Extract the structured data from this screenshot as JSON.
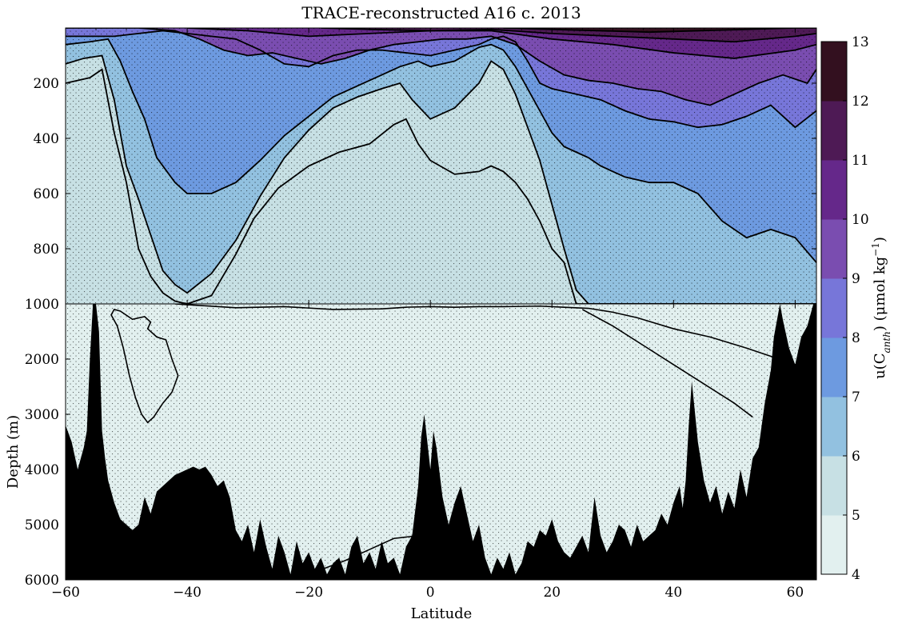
{
  "chart_data": {
    "type": "heatmap",
    "title": "TRACE-reconstructed A16 c. 2013",
    "xlabel": "Latitude",
    "ylabel": "Depth (m)",
    "colorbar_label": "u(C",
    "colorbar_label_sub": "anth",
    "colorbar_label_rest": ") (μmol kg",
    "colorbar_label_sup": "−1",
    "colorbar_label_end": ")",
    "xlim": [
      -60,
      63.5
    ],
    "x_ticks": [
      -60,
      -40,
      -20,
      0,
      20,
      40,
      60
    ],
    "x_tick_labels": [
      "−60",
      "−40",
      "−20",
      "0",
      "20",
      "40",
      "60"
    ],
    "upper_panel": {
      "ylim": [
        0,
        1000
      ],
      "y_ticks": [
        200,
        400,
        600,
        800,
        1000
      ],
      "y_tick_labels": [
        "200",
        "400",
        "600",
        "800",
        "1000"
      ]
    },
    "lower_panel": {
      "ylim": [
        1000,
        6000
      ],
      "y_ticks": [
        1000,
        2000,
        3000,
        4000,
        5000,
        6000
      ],
      "y_tick_labels": [
        "1000",
        "2000",
        "3000",
        "4000",
        "5000",
        "6000"
      ]
    },
    "colorbar": {
      "levels": [
        4,
        5,
        6,
        7,
        8,
        9,
        10,
        11,
        12,
        13
      ],
      "level_labels": [
        "4",
        "5",
        "6",
        "7",
        "8",
        "9",
        "10",
        "11",
        "12",
        "13"
      ],
      "colors": [
        "#e2f0ef",
        "#c7e0e4",
        "#92c1e0",
        "#6d9ae0",
        "#7776d9",
        "#7a4db0",
        "#65288a",
        "#4e1a55",
        "#33101f"
      ]
    },
    "contours_upper": [
      {
        "level": 5,
        "x": [
          -60,
          -56,
          -54,
          -52,
          -50,
          -48,
          -46,
          -44,
          -42,
          -40,
          -36,
          -32,
          -29,
          -25,
          -20,
          -15,
          -10,
          -6,
          -4,
          -2,
          0,
          4,
          8,
          10,
          12,
          14,
          16,
          18,
          20,
          22,
          24,
          26,
          30,
          34,
          38,
          42,
          46,
          50,
          54,
          58,
          62,
          63.5
        ],
        "y": [
          200,
          180,
          150,
          380,
          560,
          800,
          900,
          960,
          990,
          1000,
          970,
          820,
          690,
          580,
          500,
          450,
          420,
          350,
          330,
          420,
          480,
          530,
          520,
          500,
          520,
          560,
          620,
          700,
          800,
          850,
          1000,
          1000,
          1000,
          1000,
          1000,
          1000,
          1000,
          1000,
          1000,
          1000,
          1000,
          1000
        ]
      },
      {
        "level": 6,
        "x": [
          -60,
          -57,
          -54,
          -52,
          -50,
          -48,
          -46,
          -44,
          -42,
          -40,
          -36,
          -32,
          -28,
          -24,
          -20,
          -16,
          -12,
          -8,
          -5,
          -3,
          0,
          4,
          8,
          10,
          12,
          14,
          16,
          18,
          20,
          22,
          24,
          26,
          30,
          36,
          42,
          48,
          54,
          58,
          62,
          63.5
        ],
        "y": [
          130,
          110,
          100,
          260,
          500,
          620,
          750,
          880,
          930,
          960,
          890,
          770,
          610,
          470,
          370,
          290,
          250,
          220,
          200,
          260,
          330,
          290,
          200,
          120,
          150,
          240,
          360,
          480,
          640,
          800,
          950,
          1000,
          1000,
          1000,
          1000,
          1000,
          1000,
          1000,
          1000,
          1000
        ]
      },
      {
        "level": 7,
        "x": [
          -60,
          -56,
          -53,
          -51,
          -49,
          -47,
          -45,
          -42,
          -40,
          -36,
          -32,
          -28,
          -24,
          -20,
          -16,
          -12,
          -8,
          -5,
          -2,
          0,
          4,
          8,
          10,
          12,
          14,
          16,
          18,
          20,
          22,
          24,
          26,
          28,
          30,
          32,
          36,
          40,
          44,
          48,
          52,
          56,
          60,
          63.5
        ],
        "y": [
          60,
          50,
          40,
          120,
          230,
          330,
          470,
          560,
          600,
          600,
          560,
          480,
          390,
          320,
          250,
          210,
          170,
          140,
          120,
          140,
          120,
          70,
          60,
          80,
          140,
          220,
          300,
          380,
          430,
          450,
          470,
          500,
          520,
          540,
          560,
          560,
          600,
          700,
          760,
          730,
          760,
          850
        ]
      },
      {
        "level": 8,
        "x": [
          -60,
          -52,
          -48,
          -44,
          -40,
          -36,
          -32,
          -28,
          -24,
          -20,
          -16,
          -12,
          -8,
          -4,
          0,
          4,
          8,
          10,
          12,
          14,
          16,
          18,
          20,
          24,
          28,
          32,
          36,
          40,
          44,
          48,
          52,
          56,
          60,
          63.5
        ],
        "y": [
          30,
          30,
          20,
          10,
          20,
          30,
          40,
          80,
          130,
          140,
          100,
          80,
          80,
          90,
          100,
          80,
          60,
          40,
          30,
          50,
          120,
          200,
          220,
          240,
          260,
          300,
          330,
          340,
          360,
          350,
          320,
          280,
          360,
          300
        ]
      },
      {
        "level": 9,
        "x": [
          -60,
          -48,
          -42,
          -38,
          -34,
          -30,
          -26,
          -22,
          -18,
          -14,
          -10,
          -6,
          -2,
          2,
          6,
          10,
          14,
          18,
          22,
          26,
          30,
          34,
          38,
          42,
          46,
          50,
          54,
          58,
          62,
          63.5
        ],
        "y": [
          0,
          0,
          10,
          40,
          80,
          100,
          90,
          110,
          130,
          110,
          80,
          60,
          50,
          40,
          40,
          30,
          60,
          120,
          170,
          190,
          200,
          220,
          230,
          260,
          280,
          240,
          200,
          170,
          200,
          150
        ]
      },
      {
        "level": 10,
        "x": [
          -40,
          -30,
          -20,
          -10,
          0,
          10,
          20,
          30,
          40,
          50,
          60,
          63.5
        ],
        "y": [
          0,
          10,
          30,
          20,
          10,
          10,
          40,
          60,
          90,
          110,
          80,
          60
        ]
      },
      {
        "level": 11,
        "x": [
          -18,
          -10,
          0,
          10,
          20,
          30,
          40,
          50,
          60,
          63.5
        ],
        "y": [
          0,
          5,
          10,
          5,
          20,
          30,
          40,
          50,
          30,
          20
        ]
      },
      {
        "level": 12,
        "x": [
          12,
          20,
          28,
          36,
          44,
          52,
          60,
          63.5
        ],
        "y": [
          0,
          5,
          10,
          15,
          10,
          5,
          0,
          0
        ]
      }
    ],
    "contours_lower": [
      {
        "level": 5,
        "closed": true,
        "x": [
          -52,
          -51,
          -49,
          -47,
          -46,
          -46.5,
          -45,
          -43.5,
          -42.5,
          -41.5,
          -42.5,
          -44,
          -45.5,
          -46.5,
          -47.5,
          -48.5,
          -49.5,
          -50.5,
          -51.5,
          -52.5,
          -52
        ],
        "y": [
          1100,
          1130,
          1280,
          1230,
          1330,
          1450,
          1600,
          1650,
          2000,
          2300,
          2600,
          2800,
          3050,
          3150,
          3000,
          2700,
          2300,
          1800,
          1400,
          1200,
          1100
        ]
      },
      {
        "level": 5,
        "closed": false,
        "x": [
          -42,
          -32,
          -24,
          -16,
          -8,
          -4,
          0,
          4,
          8,
          12,
          18,
          22,
          26,
          30,
          34,
          40,
          46,
          52,
          56,
          58,
          60,
          63.5
        ],
        "y": [
          1000,
          1070,
          1050,
          1100,
          1090,
          1060,
          1050,
          1060,
          1050,
          1050,
          1040,
          1060,
          1080,
          1150,
          1250,
          1450,
          1600,
          1800,
          1950,
          2050,
          2100,
          2000
        ]
      },
      {
        "level": 5,
        "closed": false,
        "x": [
          25,
          30,
          35,
          40,
          45,
          50,
          53
        ],
        "y": [
          1100,
          1400,
          1750,
          2100,
          2450,
          2800,
          3050
        ]
      },
      {
        "level": 5,
        "closed": false,
        "x": [
          -20,
          -14,
          -10,
          -6,
          -2
        ],
        "y": [
          5900,
          5650,
          5450,
          5250,
          5200
        ]
      }
    ],
    "bathymetry": {
      "x": [
        -60,
        -59,
        -58,
        -57,
        -56.5,
        -56,
        -55.5,
        -55,
        -54.5,
        -54,
        -53.5,
        -53,
        -52,
        -51,
        -50,
        -49,
        -48,
        -47,
        -46,
        -45,
        -44,
        -43,
        -42,
        -41,
        -40,
        -39,
        -38,
        -37,
        -36,
        -35,
        -34,
        -33,
        -32,
        -31,
        -30,
        -29,
        -28,
        -27,
        -26,
        -25,
        -24,
        -23,
        -22,
        -21,
        -20,
        -19,
        -18,
        -17,
        -16,
        -15,
        -14,
        -13,
        -12,
        -11,
        -10,
        -9,
        -8,
        -7,
        -6,
        -5,
        -4,
        -3,
        -2,
        -1.5,
        -1,
        -0.5,
        0,
        0.5,
        1,
        2,
        3,
        4,
        5,
        6,
        7,
        8,
        9,
        10,
        11,
        12,
        13,
        14,
        15,
        16,
        17,
        18,
        19,
        20,
        21,
        22,
        23,
        24,
        25,
        26,
        27,
        28,
        29,
        30,
        31,
        32,
        33,
        34,
        35,
        36,
        37,
        38,
        39,
        40,
        41,
        41.5,
        42,
        42.5,
        43,
        44,
        45,
        46,
        47,
        48,
        49,
        50,
        51,
        52,
        53,
        54,
        55,
        56,
        56.5,
        57,
        57.5,
        58,
        59,
        60,
        61,
        62,
        63,
        63.5
      ],
      "y": [
        3200,
        3500,
        4000,
        3600,
        3300,
        2000,
        1000,
        1000,
        1500,
        3300,
        3800,
        4200,
        4600,
        4900,
        5000,
        5100,
        5000,
        4500,
        4800,
        4400,
        4300,
        4200,
        4100,
        4050,
        4000,
        3950,
        4000,
        3950,
        4100,
        4300,
        4200,
        4500,
        5100,
        5300,
        5000,
        5500,
        4900,
        5400,
        5800,
        5200,
        5500,
        5900,
        5300,
        5700,
        5500,
        5800,
        5600,
        5900,
        5700,
        5600,
        5900,
        5400,
        5200,
        5700,
        5500,
        5800,
        5300,
        5700,
        5600,
        5900,
        5400,
        5200,
        4300,
        3400,
        3000,
        3500,
        4000,
        3300,
        3600,
        4500,
        5000,
        4600,
        4300,
        4800,
        5300,
        5000,
        5600,
        5900,
        5600,
        5800,
        5500,
        5900,
        5700,
        5300,
        5400,
        5100,
        5200,
        4900,
        5300,
        5500,
        5600,
        5400,
        5200,
        5500,
        4500,
        5200,
        5500,
        5300,
        5000,
        5100,
        5400,
        5000,
        5300,
        5200,
        5100,
        4800,
        5000,
        4600,
        4300,
        4700,
        4200,
        3200,
        2400,
        3500,
        4200,
        4600,
        4300,
        4800,
        4400,
        4700,
        4000,
        4500,
        3800,
        3600,
        2800,
        2200,
        1600,
        1300,
        1000,
        1300,
        1800,
        2100,
        1600,
        1400,
        1000,
        1000
      ]
    }
  }
}
